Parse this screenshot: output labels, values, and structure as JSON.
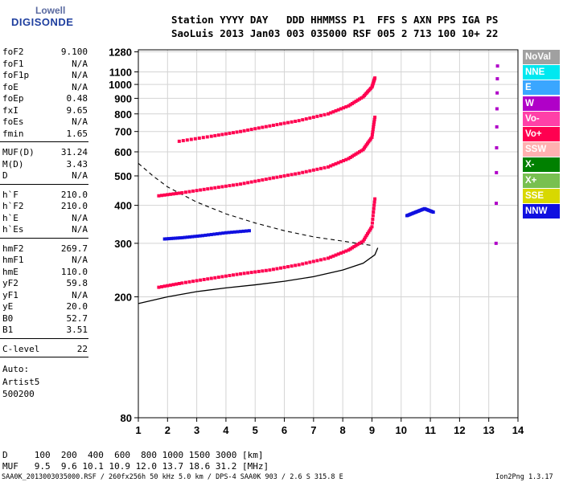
{
  "logo": {
    "line1": "Lowell",
    "line2": "DIGISONDE"
  },
  "header": {
    "row1": "Station YYYY DAY   DDD HHMMSS P1  FFS S AXN PPS IGA PS",
    "row2": "SaoLuis 2013 Jan03 003 035000 RSF 005 2 713 100 10+ 22"
  },
  "params_group1": [
    {
      "k": "foF2",
      "v": "9.100"
    },
    {
      "k": "foF1",
      "v": "N/A"
    },
    {
      "k": "foF1p",
      "v": "N/A"
    },
    {
      "k": "foE",
      "v": "N/A"
    },
    {
      "k": "foEp",
      "v": "0.48"
    },
    {
      "k": "fxI",
      "v": "9.65"
    },
    {
      "k": "foEs",
      "v": "N/A"
    },
    {
      "k": "fmin",
      "v": "1.65"
    }
  ],
  "params_group2": [
    {
      "k": "MUF(D)",
      "v": "31.24"
    },
    {
      "k": "M(D)",
      "v": "3.43"
    },
    {
      "k": "D",
      "v": "N/A"
    }
  ],
  "params_group3": [
    {
      "k": "h`F",
      "v": "210.0"
    },
    {
      "k": "h`F2",
      "v": "210.0"
    },
    {
      "k": "h`E",
      "v": "N/A"
    },
    {
      "k": "h`Es",
      "v": "N/A"
    }
  ],
  "params_group4": [
    {
      "k": "hmF2",
      "v": "269.7"
    },
    {
      "k": "hmF1",
      "v": "N/A"
    },
    {
      "k": "hmE",
      "v": "110.0"
    },
    {
      "k": "yF2",
      "v": "59.8"
    },
    {
      "k": "yF1",
      "v": "N/A"
    },
    {
      "k": "yE",
      "v": "20.0"
    },
    {
      "k": "B0",
      "v": "52.7"
    },
    {
      "k": "B1",
      "v": "3.51"
    }
  ],
  "params_group5": [
    {
      "k": "C-level",
      "v": "22"
    }
  ],
  "autoscaling": {
    "line1": "Auto:",
    "line2": "Artist5",
    "line3": "500200"
  },
  "muf_table": {
    "row_d": "D     100  200  400  600  800 1000 1500 3000 [km]",
    "row_muf": "MUF   9.5  9.6 10.1 10.9 12.0 13.7 18.6 31.2 [MHz]"
  },
  "footer": {
    "left": "SAA0K_2013003035000.RSF / 260fx256h 50 kHz 5.0 km / DPS-4 SAA0K 903 / 2.6 S 315.8 E",
    "right": "Ion2Png 1.3.17"
  },
  "legend": [
    {
      "label": "NoVal",
      "bg": "#a0a0a0",
      "fg": "#ffffff"
    },
    {
      "label": "NNE",
      "bg": "#00e8f0",
      "fg": "#ffffff"
    },
    {
      "label": "E",
      "bg": "#3aa6ff",
      "fg": "#ffffff"
    },
    {
      "label": "W",
      "bg": "#b000c8",
      "fg": "#ffffff"
    },
    {
      "label": "Vo-",
      "bg": "#ff40a8",
      "fg": "#ffffff"
    },
    {
      "label": "Vo+",
      "bg": "#ff0050",
      "fg": "#ffffff"
    },
    {
      "label": "SSW",
      "bg": "#ffb0b0",
      "fg": "#ffffff"
    },
    {
      "label": "X-",
      "bg": "#008000",
      "fg": "#ffffff"
    },
    {
      "label": "X+",
      "bg": "#78c050",
      "fg": "#ffffff"
    },
    {
      "label": "SSE",
      "bg": "#d8d800",
      "fg": "#ffffff"
    },
    {
      "label": "NNW",
      "bg": "#1010e0",
      "fg": "#ffffff"
    }
  ],
  "chart_data": {
    "type": "scatter",
    "xlim": [
      1,
      14
    ],
    "ylim_log": [
      80,
      1300
    ],
    "x_ticks": [
      1,
      2,
      3,
      4,
      5,
      6,
      7,
      8,
      9,
      10,
      11,
      12,
      13,
      14
    ],
    "y_ticks": [
      80,
      200,
      300,
      400,
      500,
      600,
      700,
      800,
      900,
      1000,
      1100,
      1280
    ],
    "grid": true,
    "y_scale": "log",
    "traces": [
      {
        "name": "1st hop O",
        "color": "#ff0050",
        "x": [
          1.7,
          2.5,
          3.5,
          4.5,
          5.5,
          6.5,
          7.5,
          8.2,
          8.7,
          9.0,
          9.1
        ],
        "y": [
          215,
          222,
          230,
          238,
          245,
          255,
          268,
          285,
          305,
          340,
          420
        ]
      },
      {
        "name": "2nd hop O",
        "color": "#ff0050",
        "x": [
          1.7,
          2.5,
          3.5,
          4.5,
          5.5,
          6.5,
          7.5,
          8.2,
          8.7,
          9.0,
          9.1
        ],
        "y": [
          430,
          440,
          455,
          470,
          490,
          510,
          535,
          570,
          610,
          670,
          780
        ]
      },
      {
        "name": "3rd hop O",
        "color": "#ff0050",
        "x": [
          2.4,
          3.5,
          4.5,
          5.5,
          6.5,
          7.5,
          8.2,
          8.7,
          9.0,
          9.1
        ],
        "y": [
          650,
          675,
          700,
          730,
          760,
          800,
          850,
          910,
          980,
          1050
        ]
      },
      {
        "name": "1st hop X",
        "color": "#1010e0",
        "x": [
          1.9,
          2.5,
          3.2,
          4.0,
          4.8
        ],
        "y": [
          310,
          313,
          318,
          325,
          330
        ]
      },
      {
        "name": "Spread echoes",
        "color": "#1010e0",
        "x": [
          10.2,
          10.5,
          10.8,
          11.1
        ],
        "y": [
          370,
          380,
          390,
          380
        ]
      },
      {
        "name": "Interference",
        "color": "#b000c8",
        "x": [
          13.25,
          13.3
        ],
        "y": [
          300,
          1150
        ]
      }
    ],
    "profile_curve": {
      "x": [
        1,
        2,
        3,
        4,
        5,
        6,
        7,
        8,
        8.7,
        9.1,
        9.2
      ],
      "y": [
        190,
        200,
        208,
        214,
        219,
        225,
        233,
        245,
        258,
        275,
        290
      ]
    },
    "muf_curve": {
      "x": [
        1,
        1.5,
        2,
        3,
        4,
        5,
        6,
        7,
        8,
        9
      ],
      "y": [
        550,
        500,
        460,
        410,
        375,
        350,
        330,
        315,
        305,
        295
      ]
    }
  }
}
